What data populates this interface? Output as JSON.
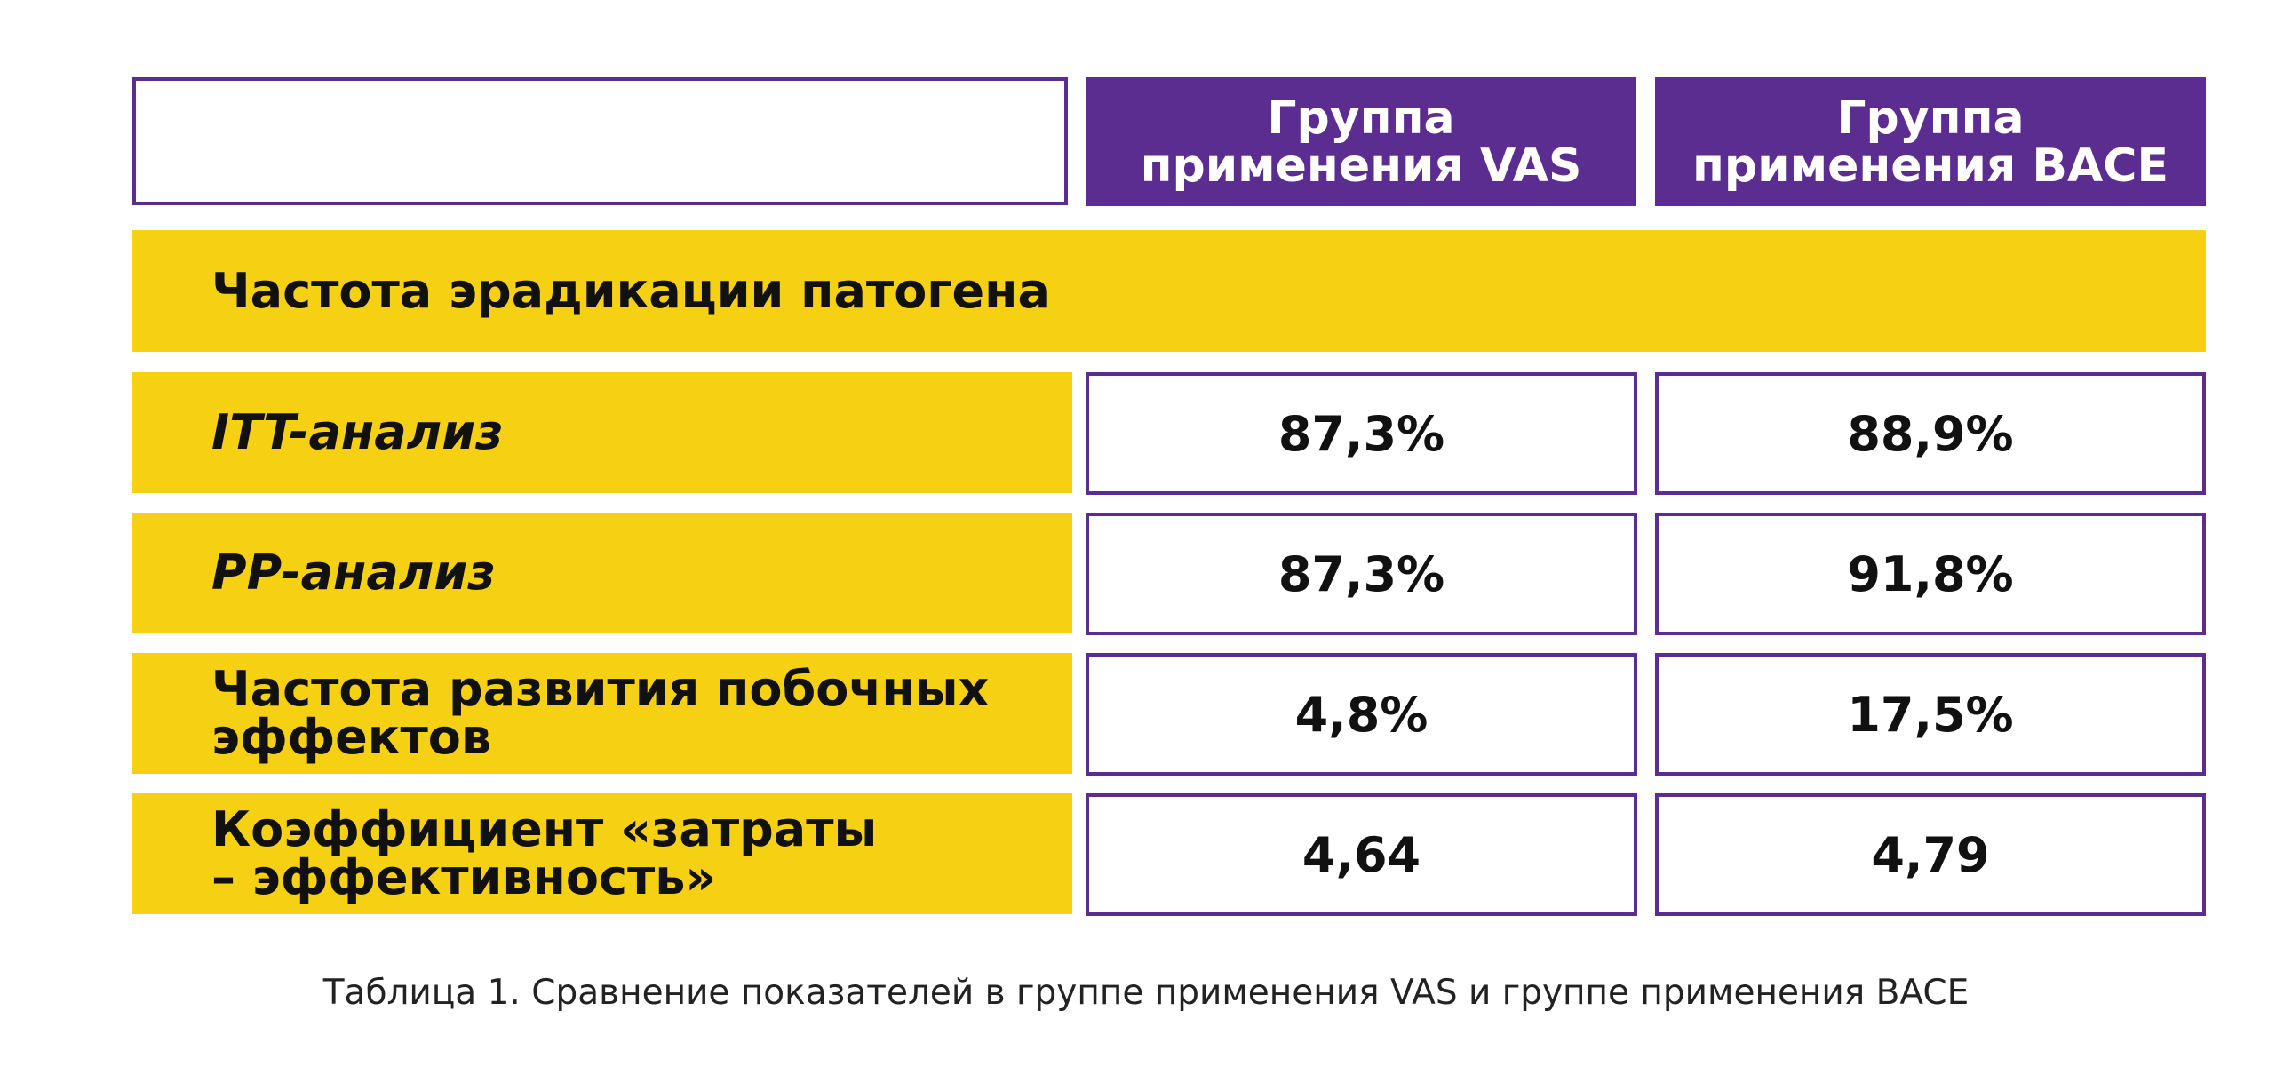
{
  "table": {
    "columns": [
      {
        "line1": "Группа",
        "line2": "применения VAS"
      },
      {
        "line1": "Группа",
        "line2": "применения BACE"
      }
    ],
    "section_title": "Частота эрадикации патогена",
    "rows": [
      {
        "label": "ITT-анализ",
        "vas": "87,3%",
        "bace": "88,9%"
      },
      {
        "label": "PP-анализ",
        "vas": "87,3%",
        "bace": "91,8%"
      },
      {
        "label_line1": "Частота развития побочных",
        "label_line2": "эффектов",
        "vas": "4,8%",
        "bace": "17,5%"
      },
      {
        "label_line1": "Коэффициент «затраты",
        "label_line2": "– эффективность»",
        "vas": "4,64",
        "bace": "4,79"
      }
    ]
  },
  "caption": "Таблица 1. Сравнение показателей в группе применения VAS и группе применения BACE",
  "colors": {
    "purple": "#5b2d90",
    "yellow": "#f6d013"
  }
}
